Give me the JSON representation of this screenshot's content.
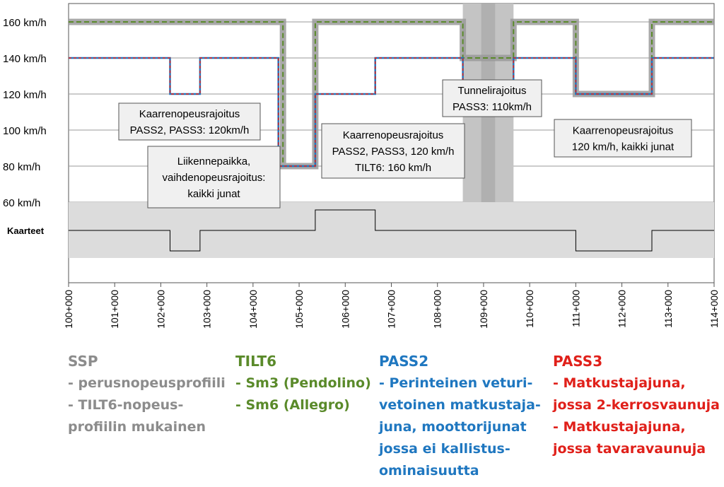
{
  "chart_data": {
    "type": "line",
    "x_unit": "km",
    "xlim": [
      100,
      114
    ],
    "ylim": [
      55,
      165
    ],
    "y_ticks": [
      {
        "value": 160,
        "label": "160 km/h"
      },
      {
        "value": 140,
        "label": "140 km/h"
      },
      {
        "value": 120,
        "label": "120 km/h"
      },
      {
        "value": 100,
        "label": "100 km/h"
      },
      {
        "value": 80,
        "label": "80 km/h"
      },
      {
        "value": 60,
        "label": "60 km/h"
      }
    ],
    "x_ticks": [
      "100+000",
      "101+000",
      "102+000",
      "103+000",
      "104+000",
      "105+000",
      "106+000",
      "107+000",
      "108+000",
      "109+000",
      "110+000",
      "111+000",
      "112+000",
      "113+000",
      "114+000"
    ],
    "curve_label": "Kaarteet",
    "tunnel_range": [
      108.55,
      109.65
    ],
    "series": [
      {
        "name": "SSP",
        "color": "#9a9a9a",
        "points": [
          [
            100,
            160
          ],
          [
            104.65,
            160
          ],
          [
            104.65,
            80
          ],
          [
            105.35,
            80
          ],
          [
            105.35,
            160
          ],
          [
            108.55,
            160
          ],
          [
            108.55,
            140
          ],
          [
            109.65,
            140
          ],
          [
            109.65,
            160
          ],
          [
            111,
            160
          ],
          [
            111,
            120
          ],
          [
            112.65,
            120
          ],
          [
            112.65,
            160
          ],
          [
            114,
            160
          ]
        ]
      },
      {
        "name": "TILT6",
        "color": "#5a8a2a",
        "points": [
          [
            100,
            160
          ],
          [
            104.65,
            160
          ],
          [
            104.65,
            80
          ],
          [
            105.35,
            80
          ],
          [
            105.35,
            160
          ],
          [
            108.55,
            160
          ],
          [
            108.55,
            140
          ],
          [
            109.65,
            140
          ],
          [
            109.65,
            160
          ],
          [
            111,
            160
          ],
          [
            111,
            120
          ],
          [
            112.65,
            120
          ],
          [
            112.65,
            160
          ],
          [
            114,
            160
          ]
        ]
      },
      {
        "name": "PASS2",
        "color": "#1f77c0",
        "points": [
          [
            100,
            140
          ],
          [
            102.2,
            140
          ],
          [
            102.2,
            120
          ],
          [
            102.85,
            120
          ],
          [
            102.85,
            140
          ],
          [
            104.55,
            140
          ],
          [
            104.55,
            80
          ],
          [
            105.35,
            80
          ],
          [
            105.35,
            120
          ],
          [
            106.65,
            120
          ],
          [
            106.65,
            140
          ],
          [
            108.55,
            140
          ],
          [
            108.55,
            110
          ],
          [
            109.65,
            110
          ],
          [
            109.65,
            140
          ],
          [
            111,
            140
          ],
          [
            111,
            120
          ],
          [
            112.65,
            120
          ],
          [
            112.65,
            140
          ],
          [
            114,
            140
          ]
        ]
      },
      {
        "name": "PASS3",
        "color": "#e0201a",
        "points": [
          [
            100,
            140
          ],
          [
            102.2,
            140
          ],
          [
            102.2,
            120
          ],
          [
            102.85,
            120
          ],
          [
            102.85,
            140
          ],
          [
            104.55,
            140
          ],
          [
            104.55,
            80
          ],
          [
            105.35,
            80
          ],
          [
            105.35,
            120
          ],
          [
            106.65,
            120
          ],
          [
            106.65,
            140
          ],
          [
            108.55,
            140
          ],
          [
            108.55,
            110
          ],
          [
            109.65,
            110
          ],
          [
            109.65,
            140
          ],
          [
            111,
            140
          ],
          [
            111,
            120
          ],
          [
            112.65,
            120
          ],
          [
            112.65,
            140
          ],
          [
            114,
            140
          ]
        ]
      }
    ],
    "curves": [
      [
        100,
        0
      ],
      [
        102.2,
        0
      ],
      [
        102.2,
        -1
      ],
      [
        102.85,
        -1
      ],
      [
        102.85,
        0
      ],
      [
        105.35,
        0
      ],
      [
        105.35,
        1
      ],
      [
        106.65,
        1
      ],
      [
        106.65,
        0
      ],
      [
        111,
        0
      ],
      [
        111,
        -1
      ],
      [
        112.65,
        -1
      ],
      [
        112.65,
        0
      ],
      [
        114,
        0
      ]
    ],
    "annotations": [
      {
        "lines": [
          "Kaarrenopeusrajoitus",
          "PASS2, PASS3: 120km/h"
        ]
      },
      {
        "lines": [
          "Liikennepaikka,",
          "vaihdenopeusrajoitus:",
          "kaikki junat"
        ]
      },
      {
        "lines": [
          "Kaarrenopeusrajoitus",
          "PASS2, PASS3, 120 km/h",
          "TILT6: 160 km/h"
        ]
      },
      {
        "lines": [
          "Tunnelirajoitus",
          "PASS3: 110km/h"
        ]
      },
      {
        "lines": [
          "Kaarrenopeusrajoitus",
          "120 km/h, kaikki junat"
        ]
      }
    ]
  },
  "legend": {
    "ssp": {
      "title": "SSP",
      "color": "#8c8c8c",
      "lines": [
        "- perusnopeusprofiili",
        "- TILT6-nopeus-",
        "profiilin mukainen"
      ]
    },
    "tilt6": {
      "title": "TILT6",
      "color": "#5a8a2a",
      "lines": [
        "- Sm3 (Pendolino)",
        "- Sm6 (Allegro)"
      ]
    },
    "pass2": {
      "title": "PASS2",
      "color": "#1f77c0",
      "lines": [
        "- Perinteinen veturi-",
        "vetoinen matkustaja-",
        "juna, moottorijunat",
        "jossa ei kallistus-",
        "ominaisuutta"
      ]
    },
    "pass3": {
      "title": "PASS3",
      "color": "#e0201a",
      "lines": [
        "- Matkustajajuna,",
        "jossa 2-kerrosvaunuja",
        "- Matkustajajuna,",
        "jossa tavaravaunuja"
      ]
    }
  }
}
